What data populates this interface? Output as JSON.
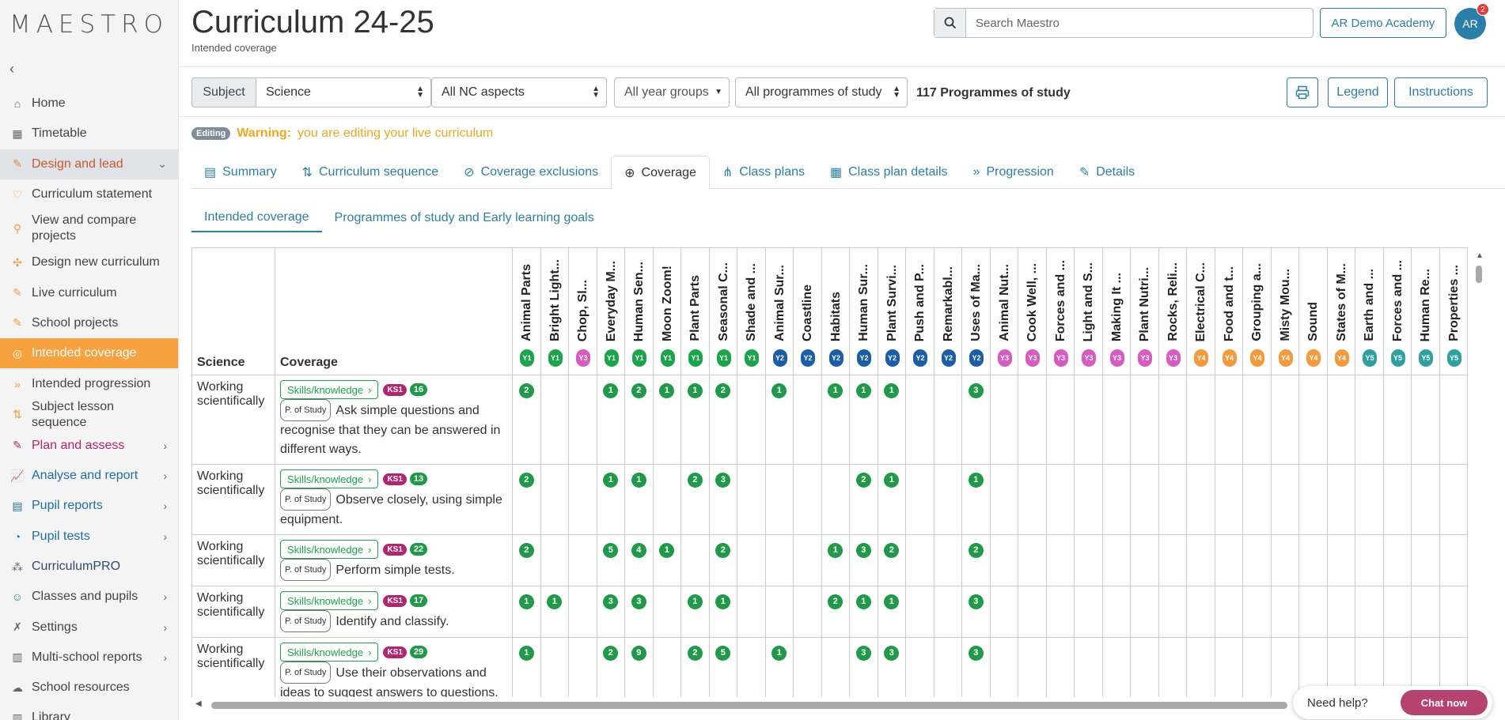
{
  "app": {
    "logo": "MAESTRO"
  },
  "sidebar": {
    "items": [
      {
        "label": "Home",
        "icon": "home-icon",
        "glyph": "⌂",
        "kind": ""
      },
      {
        "label": "Timetable",
        "icon": "calendar-icon",
        "glyph": "▦",
        "kind": ""
      },
      {
        "label": "Design and lead",
        "icon": "design-icon",
        "glyph": "✎",
        "kind": "section",
        "chevron": "⌄"
      },
      {
        "label": "Curriculum statement",
        "icon": "heart-icon",
        "glyph": "♡",
        "kind": "sub"
      },
      {
        "label": "View and compare projects",
        "icon": "search-icon",
        "glyph": "⚲",
        "kind": "sub two"
      },
      {
        "label": "Design new curriculum",
        "icon": "puzzle-icon",
        "glyph": "✣",
        "kind": "sub"
      },
      {
        "label": "Live curriculum",
        "icon": "edit-icon",
        "glyph": "✎",
        "kind": "sub"
      },
      {
        "label": "School projects",
        "icon": "edit-icon",
        "glyph": "✎",
        "kind": "sub"
      },
      {
        "label": "Intended coverage",
        "icon": "target-icon",
        "glyph": "◎",
        "kind": "sub active"
      },
      {
        "label": "Intended progression",
        "icon": "double-chevron-icon",
        "glyph": "»",
        "kind": "sub"
      },
      {
        "label": "Subject lesson sequence",
        "icon": "sort-icon",
        "glyph": "⇅",
        "kind": "sub"
      },
      {
        "label": "Plan and assess",
        "icon": "edit-icon",
        "glyph": "✎",
        "kind": "pink",
        "chevron": "›"
      },
      {
        "label": "Analyse and report",
        "icon": "chart-icon",
        "glyph": "📈",
        "kind": "blue",
        "chevron": "›"
      },
      {
        "label": "Pupil reports",
        "icon": "report-icon",
        "glyph": "▤",
        "kind": "blue",
        "chevron": "›"
      },
      {
        "label": "Pupil tests",
        "icon": "timer-icon",
        "glyph": "◔",
        "kind": "blue",
        "chevron": "›"
      },
      {
        "label": "CurriculumPRO",
        "icon": "network-icon",
        "glyph": "⁂",
        "kind": "dark"
      },
      {
        "label": "Classes and pupils",
        "icon": "users-icon",
        "glyph": "☺",
        "kind": "teal",
        "chevron": "›"
      },
      {
        "label": "Settings",
        "icon": "tools-icon",
        "glyph": "✗",
        "kind": "",
        "chevron": "›"
      },
      {
        "label": "Multi-school reports",
        "icon": "buildings-icon",
        "glyph": "▥",
        "kind": "",
        "chevron": "›"
      },
      {
        "label": "School resources",
        "icon": "cloud-icon",
        "glyph": "☁",
        "kind": ""
      },
      {
        "label": "Library",
        "icon": "library-icon",
        "glyph": "▥",
        "kind": ""
      }
    ]
  },
  "header": {
    "title": "Curriculum 24-25",
    "subtitle": "Intended coverage",
    "search_placeholder": "Search Maestro",
    "school": "AR Demo Academy",
    "avatar": "AR",
    "notifications": "2"
  },
  "filters": {
    "subject_label": "Subject",
    "subject": "Science",
    "nc_aspects": "All NC aspects",
    "year_groups": "All year groups",
    "programmes": "All programmes of study",
    "count": "117 Programmes of study",
    "legend": "Legend",
    "instructions": "Instructions"
  },
  "warning": {
    "badge": "Editing",
    "title": "Warning:",
    "text": "you are editing your live curriculum"
  },
  "tabs": [
    {
      "label": "Summary",
      "icon": "clipboard-icon",
      "glyph": "▤",
      "active": false
    },
    {
      "label": "Curriculum sequence",
      "icon": "sort-icon",
      "glyph": "⇅",
      "active": false
    },
    {
      "label": "Coverage exclusions",
      "icon": "ban-icon",
      "glyph": "⊘",
      "active": false
    },
    {
      "label": "Coverage",
      "icon": "crosshair-icon",
      "glyph": "⊕",
      "active": true
    },
    {
      "label": "Class plans",
      "icon": "sitemap-icon",
      "glyph": "⋔",
      "active": false
    },
    {
      "label": "Class plan details",
      "icon": "grid-icon",
      "glyph": "▦",
      "active": false
    },
    {
      "label": "Progression",
      "icon": "double-chevron-icon",
      "glyph": "»",
      "active": false
    },
    {
      "label": "Details",
      "icon": "pencil-icon",
      "glyph": "✎",
      "active": false
    }
  ],
  "subtabs": [
    {
      "label": "Intended coverage",
      "active": true
    },
    {
      "label": "Programmes of study and Early learning goals",
      "active": false
    }
  ],
  "table": {
    "col_science": "Science",
    "col_coverage": "Coverage",
    "columns": [
      {
        "label": "Animal Parts",
        "year": "Y1"
      },
      {
        "label": "Bright Light...",
        "year": "Y1"
      },
      {
        "label": "Chop, Sl...",
        "year": "Y3"
      },
      {
        "label": "Everyday M...",
        "year": "Y1"
      },
      {
        "label": "Human Sen...",
        "year": "Y1"
      },
      {
        "label": "Moon Zoom!",
        "year": "Y1"
      },
      {
        "label": "Plant Parts",
        "year": "Y1"
      },
      {
        "label": "Seasonal C...",
        "year": "Y1"
      },
      {
        "label": "Shade and ...",
        "year": "Y1"
      },
      {
        "label": "Animal Sur...",
        "year": "Y2"
      },
      {
        "label": "Coastline",
        "year": "Y2"
      },
      {
        "label": "Habitats",
        "year": "Y2"
      },
      {
        "label": "Human Sur...",
        "year": "Y2"
      },
      {
        "label": "Plant Survi...",
        "year": "Y2"
      },
      {
        "label": "Push and P...",
        "year": "Y2"
      },
      {
        "label": "Remarkabl...",
        "year": "Y2"
      },
      {
        "label": "Uses of Ma...",
        "year": "Y2"
      },
      {
        "label": "Animal Nut...",
        "year": "Y3"
      },
      {
        "label": "Cook Well, ...",
        "year": "Y3"
      },
      {
        "label": "Forces and ...",
        "year": "Y3"
      },
      {
        "label": "Light and S...",
        "year": "Y3"
      },
      {
        "label": "Making It ...",
        "year": "Y3"
      },
      {
        "label": "Plant Nutri...",
        "year": "Y3"
      },
      {
        "label": "Rocks, Reli...",
        "year": "Y3"
      },
      {
        "label": "Electrical C...",
        "year": "Y4"
      },
      {
        "label": "Food and t...",
        "year": "Y4"
      },
      {
        "label": "Grouping a...",
        "year": "Y4"
      },
      {
        "label": "Misty Mou...",
        "year": "Y4"
      },
      {
        "label": "Sound",
        "year": "Y4"
      },
      {
        "label": "States of M...",
        "year": "Y4"
      },
      {
        "label": "Earth and ...",
        "year": "Y5"
      },
      {
        "label": "Forces and ...",
        "year": "Y5"
      },
      {
        "label": "Human Re...",
        "year": "Y5"
      },
      {
        "label": "Properties ...",
        "year": "Y5"
      }
    ],
    "rows": [
      {
        "aspect": "Working scientifically",
        "chip": "Skills/knowledge",
        "ks": "KS1",
        "count": "16",
        "pos": "P. of Study",
        "text": "Ask simple questions and recognise that they can be answered in different ways.",
        "cells": [
          "2",
          "",
          "",
          "1",
          "2",
          "1",
          "1",
          "2",
          "",
          "1",
          "",
          "1",
          "1",
          "1",
          "",
          "",
          "3",
          "",
          "",
          "",
          "",
          "",
          "",
          "",
          "",
          "",
          "",
          "",
          "",
          "",
          "",
          "",
          "",
          ""
        ]
      },
      {
        "aspect": "Working scientifically",
        "chip": "Skills/knowledge",
        "ks": "KS1",
        "count": "13",
        "pos": "P. of Study",
        "text": "Observe closely, using simple equipment.",
        "cells": [
          "2",
          "",
          "",
          "1",
          "1",
          "",
          "2",
          "3",
          "",
          "",
          "",
          "",
          "2",
          "1",
          "",
          "",
          "1",
          "",
          "",
          "",
          "",
          "",
          "",
          "",
          "",
          "",
          "",
          "",
          "",
          "",
          "",
          "",
          "",
          ""
        ]
      },
      {
        "aspect": "Working scientifically",
        "chip": "Skills/knowledge",
        "ks": "KS1",
        "count": "22",
        "pos": "P. of Study",
        "text": "Perform simple tests.",
        "cells": [
          "2",
          "",
          "",
          "5",
          "4",
          "1",
          "",
          "2",
          "",
          "",
          "",
          "1",
          "3",
          "2",
          "",
          "",
          "2",
          "",
          "",
          "",
          "",
          "",
          "",
          "",
          "",
          "",
          "",
          "",
          "",
          "",
          "",
          "",
          "",
          ""
        ]
      },
      {
        "aspect": "Working scientifically",
        "chip": "Skills/knowledge",
        "ks": "KS1",
        "count": "17",
        "pos": "P. of Study",
        "text": "Identify and classify.",
        "cells": [
          "1",
          "1",
          "",
          "3",
          "3",
          "",
          "1",
          "1",
          "",
          "",
          "",
          "2",
          "1",
          "1",
          "",
          "",
          "3",
          "",
          "",
          "",
          "",
          "",
          "",
          "",
          "",
          "",
          "",
          "",
          "",
          "",
          "",
          "",
          "",
          ""
        ]
      },
      {
        "aspect": "Working scientifically",
        "chip": "Skills/knowledge",
        "ks": "KS1",
        "count": "29",
        "pos": "P. of Study",
        "text": "Use their observations and ideas to suggest answers to questions.",
        "cells": [
          "1",
          "",
          "",
          "2",
          "9",
          "",
          "2",
          "5",
          "",
          "1",
          "",
          "",
          "3",
          "3",
          "",
          "",
          "3",
          "",
          "",
          "",
          "",
          "",
          "",
          "",
          "",
          "",
          "",
          "",
          "",
          "",
          "",
          "",
          "",
          ""
        ]
      }
    ]
  },
  "help": {
    "text": "Need help?",
    "chat": "Chat now"
  }
}
